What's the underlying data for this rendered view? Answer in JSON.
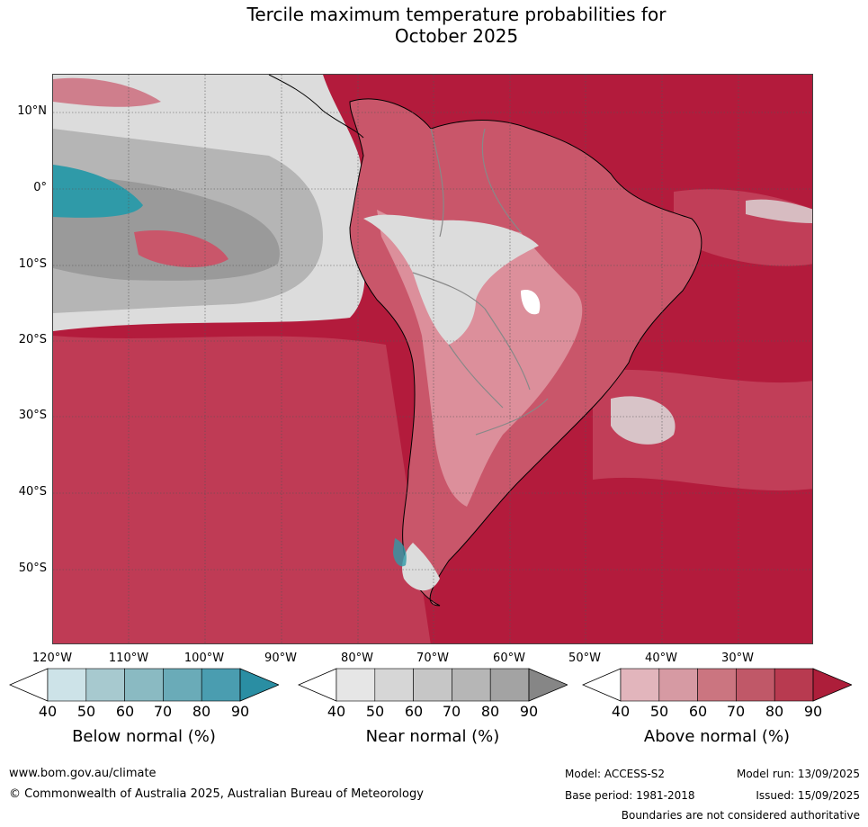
{
  "title": {
    "line1": "Tercile maximum temperature probabilities for",
    "line2": "October 2025"
  },
  "map": {
    "lat_labels": [
      "10°N",
      "0°",
      "10°S",
      "20°S",
      "30°S",
      "40°S",
      "50°S"
    ],
    "lon_labels": [
      "120°W",
      "110°W",
      "100°W",
      "90°W",
      "80°W",
      "70°W",
      "60°W",
      "50°W",
      "40°W",
      "30°W"
    ],
    "colors": {
      "ocean_above": "#b31b3c",
      "above_mid": "#c9566a",
      "above_light": "#dc8f9b",
      "near_light": "#dcdcdc",
      "near_mid": "#b5b5b5",
      "near_dark": "#9a9a9a",
      "below": "#2f9aa8",
      "coast": "#000000",
      "border": "#888888"
    }
  },
  "colorbars": {
    "below": {
      "label": "Below normal (%)",
      "ticks": [
        "40",
        "50",
        "60",
        "70",
        "80",
        "90"
      ],
      "colors": [
        "#cde3e8",
        "#a7c9cf",
        "#8abac2",
        "#6aabb8",
        "#4a9db0",
        "#2a8ea3"
      ]
    },
    "near": {
      "label": "Near normal (%)",
      "ticks": [
        "40",
        "50",
        "60",
        "70",
        "80",
        "90"
      ],
      "colors": [
        "#e6e6e6",
        "#d6d6d6",
        "#c6c6c6",
        "#b6b6b6",
        "#a3a3a3",
        "#868686"
      ]
    },
    "above": {
      "label": "Above normal (%)",
      "ticks": [
        "40",
        "50",
        "60",
        "70",
        "80",
        "90"
      ],
      "colors": [
        "#e2b5bc",
        "#d69aa3",
        "#cb7580",
        "#c05868",
        "#b83a50",
        "#ad1e3a"
      ]
    }
  },
  "footer": {
    "url": "www.bom.gov.au/climate",
    "copyright": "© Commonwealth of Australia 2025, Australian Bureau of Meteorology",
    "model": "Model: ACCESS-S2",
    "base_period": "Base period: 1981-2018",
    "model_run": "Model run: 13/09/2025",
    "issued": "Issued: 15/09/2025",
    "disclaimer": "Boundaries are not considered authoritative"
  }
}
